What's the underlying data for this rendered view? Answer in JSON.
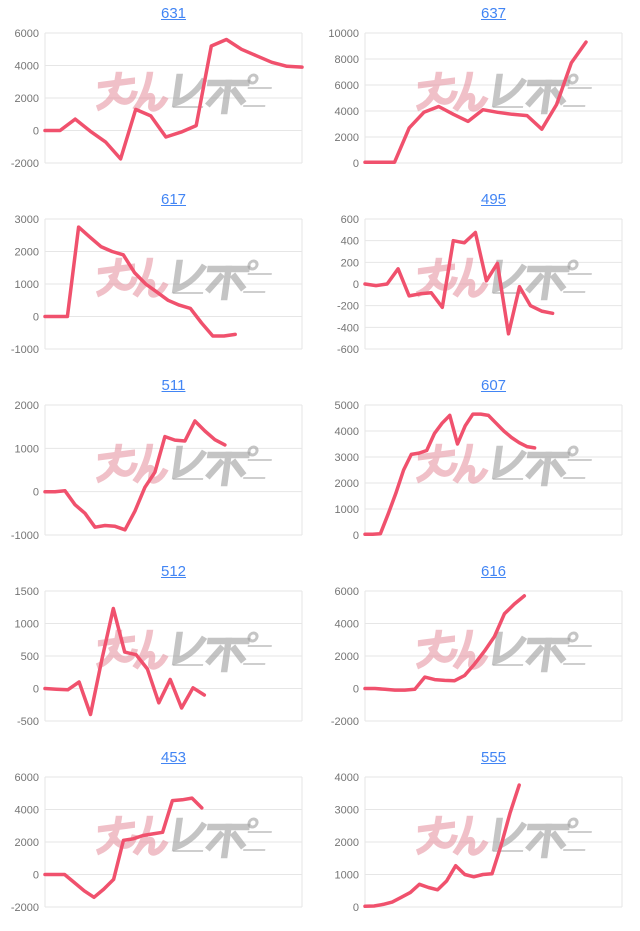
{
  "page": {
    "background": "#ffffff"
  },
  "style": {
    "line_color": "#f0516d",
    "grid_color": "#e6e6e6",
    "axis_label_color": "#757575",
    "title_link_color": "#4285f4"
  },
  "watermark": {
    "text": "みんレポ",
    "pink_part": "みん",
    "gray_part": "レポ",
    "pink_color": "#e58e9c",
    "gray_color": "#9e9e9e"
  },
  "chart_data": [
    {
      "type": "line",
      "title": "631",
      "ylim": [
        -2000,
        6000
      ],
      "yticks": [
        6000,
        4000,
        2000,
        0,
        -2000
      ],
      "grid": true,
      "legend": "none",
      "x_fill": 1.0,
      "values": [
        0,
        0,
        700,
        -50,
        -700,
        -1750,
        1300,
        900,
        -400,
        -100,
        300,
        5200,
        5600,
        5000,
        4600,
        4200,
        3950,
        3900
      ]
    },
    {
      "type": "line",
      "title": "637",
      "ylim": [
        0,
        10000
      ],
      "yticks": [
        10000,
        8000,
        6000,
        4000,
        2000,
        0
      ],
      "grid": true,
      "legend": "none",
      "x_fill": 0.86,
      "values": [
        50,
        50,
        50,
        2700,
        3900,
        4350,
        3750,
        3200,
        4100,
        3900,
        3750,
        3650,
        2600,
        4500,
        7700,
        9300
      ]
    },
    {
      "type": "line",
      "title": "617",
      "ylim": [
        -1000,
        3000
      ],
      "yticks": [
        3000,
        2000,
        1000,
        0,
        -1000
      ],
      "grid": true,
      "legend": "none",
      "x_fill": 0.74,
      "values": [
        0,
        0,
        0,
        2750,
        2450,
        2150,
        2000,
        1900,
        1350,
        1000,
        750,
        500,
        350,
        250,
        -200,
        -600,
        -600,
        -550
      ]
    },
    {
      "type": "line",
      "title": "495",
      "ylim": [
        -600,
        600
      ],
      "yticks": [
        600,
        400,
        200,
        0,
        -200,
        -400,
        -600
      ],
      "grid": true,
      "legend": "none",
      "x_fill": 0.73,
      "values": [
        0,
        -15,
        0,
        140,
        -110,
        -90,
        -80,
        -215,
        400,
        380,
        475,
        30,
        190,
        -460,
        -25,
        -200,
        -250,
        -270
      ]
    },
    {
      "type": "line",
      "title": "511",
      "ylim": [
        -1000,
        2000
      ],
      "yticks": [
        2000,
        1000,
        0,
        -1000
      ],
      "grid": true,
      "legend": "none",
      "x_fill": 0.7,
      "values": [
        0,
        0,
        20,
        -300,
        -500,
        -820,
        -780,
        -800,
        -880,
        -450,
        100,
        450,
        1270,
        1190,
        1170,
        1630,
        1400,
        1200,
        1080
      ]
    },
    {
      "type": "line",
      "title": "607",
      "ylim": [
        0,
        5000
      ],
      "yticks": [
        5000,
        4000,
        3000,
        2000,
        1000,
        0
      ],
      "grid": true,
      "legend": "none",
      "x_fill": 0.66,
      "values": [
        30,
        30,
        50,
        800,
        1600,
        2500,
        3100,
        3150,
        3250,
        3900,
        4300,
        4600,
        3500,
        4200,
        4650,
        4650,
        4600,
        4300,
        4000,
        3750,
        3550,
        3400,
        3350
      ]
    },
    {
      "type": "line",
      "title": "512",
      "ylim": [
        -500,
        1500
      ],
      "yticks": [
        1500,
        1000,
        500,
        0,
        -500
      ],
      "grid": true,
      "legend": "none",
      "x_fill": 0.62,
      "values": [
        0,
        -10,
        -20,
        100,
        -400,
        450,
        1230,
        560,
        520,
        300,
        -220,
        140,
        -300,
        10,
        -100
      ]
    },
    {
      "type": "line",
      "title": "616",
      "ylim": [
        -2000,
        6000
      ],
      "yticks": [
        6000,
        4000,
        2000,
        0,
        -2000
      ],
      "grid": true,
      "legend": "none",
      "x_fill": 0.62,
      "values": [
        0,
        0,
        -50,
        -100,
        -100,
        -50,
        700,
        550,
        500,
        480,
        800,
        1500,
        2300,
        3200,
        4600,
        5200,
        5700
      ]
    },
    {
      "type": "line",
      "title": "453",
      "ylim": [
        -2000,
        6000
      ],
      "yticks": [
        6000,
        4000,
        2000,
        0,
        -2000
      ],
      "grid": true,
      "legend": "none",
      "x_fill": 0.61,
      "values": [
        0,
        0,
        0,
        -500,
        -1000,
        -1400,
        -900,
        -300,
        2100,
        2200,
        2400,
        2500,
        2600,
        4550,
        4600,
        4700,
        4100
      ]
    },
    {
      "type": "line",
      "title": "555",
      "ylim": [
        0,
        4000
      ],
      "yticks": [
        4000,
        3000,
        2000,
        1000,
        0
      ],
      "grid": true,
      "legend": "none",
      "x_fill": 0.6,
      "values": [
        20,
        30,
        80,
        150,
        300,
        450,
        700,
        600,
        530,
        800,
        1270,
        1000,
        930,
        1000,
        1020,
        1900,
        2900,
        3750
      ]
    }
  ]
}
